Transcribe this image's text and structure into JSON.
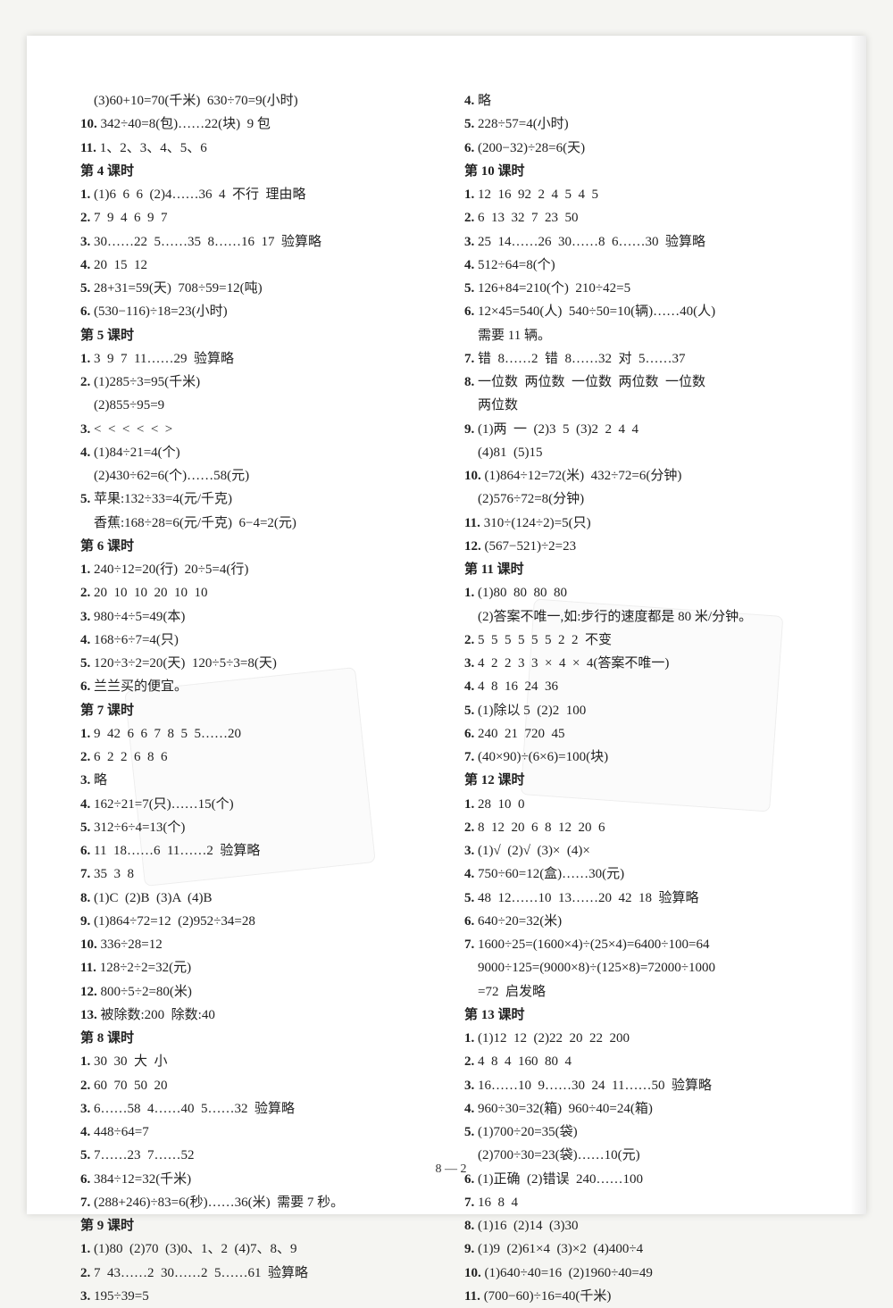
{
  "footer": "8 — 2",
  "left": [
    {
      "t": "    (3)60+10=70(千米)  630÷70=9(小时)"
    },
    {
      "b": true,
      "t": "10. ",
      "r": "342÷40=8(包)……22(块)  9 包"
    },
    {
      "b": true,
      "t": "11. ",
      "r": "1、2、3、4、5、6"
    },
    {
      "h": true,
      "t": "第 4 课时"
    },
    {
      "b": true,
      "t": "1. ",
      "r": "(1)6  6  6  (2)4……36  4  不行  理由略"
    },
    {
      "b": true,
      "t": "2. ",
      "r": "7  9  4  6  9  7"
    },
    {
      "b": true,
      "t": "3. ",
      "r": "30……22  5……35  8……16  17  验算略"
    },
    {
      "b": true,
      "t": "4. ",
      "r": "20  15  12"
    },
    {
      "b": true,
      "t": "5. ",
      "r": "28+31=59(天)  708÷59=12(吨)"
    },
    {
      "b": true,
      "t": "6. ",
      "r": "(530−116)÷18=23(小时)"
    },
    {
      "h": true,
      "t": "第 5 课时"
    },
    {
      "b": true,
      "t": "1. ",
      "r": "3  9  7  11……29  验算略"
    },
    {
      "b": true,
      "t": "2. ",
      "r": "(1)285÷3=95(千米)"
    },
    {
      "t": "    (2)855÷95=9"
    },
    {
      "b": true,
      "t": "3. ",
      "r": "<  <  <  <  <  >"
    },
    {
      "b": true,
      "t": "4. ",
      "r": "(1)84÷21=4(个)"
    },
    {
      "t": "    (2)430÷62=6(个)……58(元)"
    },
    {
      "b": true,
      "t": "5. ",
      "r": "苹果:132÷33=4(元/千克)"
    },
    {
      "t": "    香蕉:168÷28=6(元/千克)  6−4=2(元)"
    },
    {
      "h": true,
      "t": "第 6 课时"
    },
    {
      "b": true,
      "t": "1. ",
      "r": "240÷12=20(行)  20÷5=4(行)"
    },
    {
      "b": true,
      "t": "2. ",
      "r": "20  10  10  20  10  10"
    },
    {
      "b": true,
      "t": "3. ",
      "r": "980÷4÷5=49(本)"
    },
    {
      "b": true,
      "t": "4. ",
      "r": "168÷6÷7=4(只)"
    },
    {
      "b": true,
      "t": "5. ",
      "r": "120÷3÷2=20(天)  120÷5÷3=8(天)"
    },
    {
      "b": true,
      "t": "6. ",
      "r": "兰兰买的便宜。"
    },
    {
      "h": true,
      "t": "第 7 课时"
    },
    {
      "b": true,
      "t": "1. ",
      "r": "9  42  6  6  7  8  5  5……20"
    },
    {
      "b": true,
      "t": "2. ",
      "r": "6  2  2  6  8  6"
    },
    {
      "b": true,
      "t": "3. ",
      "r": "略"
    },
    {
      "b": true,
      "t": "4. ",
      "r": "162÷21=7(只)……15(个)"
    },
    {
      "b": true,
      "t": "5. ",
      "r": "312÷6÷4=13(个)"
    },
    {
      "b": true,
      "t": "6. ",
      "r": "11  18……6  11……2  验算略"
    },
    {
      "b": true,
      "t": "7. ",
      "r": "35  3  8"
    },
    {
      "b": true,
      "t": "8. ",
      "r": "(1)C  (2)B  (3)A  (4)B"
    },
    {
      "b": true,
      "t": "9. ",
      "r": "(1)864÷72=12  (2)952÷34=28"
    },
    {
      "b": true,
      "t": "10. ",
      "r": "336÷28=12"
    },
    {
      "b": true,
      "t": "11. ",
      "r": "128÷2÷2=32(元)"
    },
    {
      "b": true,
      "t": "12. ",
      "r": "800÷5÷2=80(米)"
    },
    {
      "b": true,
      "t": "13. ",
      "r": "被除数:200  除数:40"
    },
    {
      "h": true,
      "t": "第 8 课时"
    },
    {
      "b": true,
      "t": "1. ",
      "r": "30  30  大  小"
    },
    {
      "b": true,
      "t": "2. ",
      "r": "60  70  50  20"
    },
    {
      "b": true,
      "t": "3. ",
      "r": "6……58  4……40  5……32  验算略"
    },
    {
      "b": true,
      "t": "4. ",
      "r": "448÷64=7"
    },
    {
      "b": true,
      "t": "5. ",
      "r": "7……23  7……52"
    },
    {
      "b": true,
      "t": "6. ",
      "r": "384÷12=32(千米)"
    },
    {
      "b": true,
      "t": "7. ",
      "r": "(288+246)÷83=6(秒)……36(米)  需要 7 秒。"
    },
    {
      "h": true,
      "t": "第 9 课时"
    },
    {
      "b": true,
      "t": "1. ",
      "r": "(1)80  (2)70  (3)0、1、2  (4)7、8、9"
    },
    {
      "b": true,
      "t": "2. ",
      "r": "7  43……2  30……2  5……61  验算略"
    },
    {
      "b": true,
      "t": "3. ",
      "r": "195÷39=5"
    }
  ],
  "right": [
    {
      "b": true,
      "t": "4. ",
      "r": "略"
    },
    {
      "b": true,
      "t": "5. ",
      "r": "228÷57=4(小时)"
    },
    {
      "b": true,
      "t": "6. ",
      "r": "(200−32)÷28=6(天)"
    },
    {
      "h": true,
      "t": "第 10 课时"
    },
    {
      "b": true,
      "t": "1. ",
      "r": "12  16  92  2  4  5  4  5"
    },
    {
      "b": true,
      "t": "2. ",
      "r": "6  13  32  7  23  50"
    },
    {
      "b": true,
      "t": "3. ",
      "r": "25  14……26  30……8  6……30  验算略"
    },
    {
      "b": true,
      "t": "4. ",
      "r": "512÷64=8(个)"
    },
    {
      "b": true,
      "t": "5. ",
      "r": "126+84=210(个)  210÷42=5"
    },
    {
      "b": true,
      "t": "6. ",
      "r": "12×45=540(人)  540÷50=10(辆)……40(人)"
    },
    {
      "t": "    需要 11 辆。"
    },
    {
      "b": true,
      "t": "7. ",
      "r": "错  8……2  错  8……32  对  5……37"
    },
    {
      "b": true,
      "t": "8. ",
      "r": "一位数  两位数  一位数  两位数  一位数"
    },
    {
      "t": "    两位数"
    },
    {
      "b": true,
      "t": "9. ",
      "r": "(1)两  一  (2)3  5  (3)2  2  4  4"
    },
    {
      "t": "    (4)81  (5)15"
    },
    {
      "b": true,
      "t": "10. ",
      "r": "(1)864÷12=72(米)  432÷72=6(分钟)"
    },
    {
      "t": "    (2)576÷72=8(分钟)"
    },
    {
      "b": true,
      "t": "11. ",
      "r": "310÷(124÷2)=5(只)"
    },
    {
      "b": true,
      "t": "12. ",
      "r": "(567−521)÷2=23"
    },
    {
      "h": true,
      "t": "第 11 课时"
    },
    {
      "b": true,
      "t": "1. ",
      "r": "(1)80  80  80  80"
    },
    {
      "t": "    (2)答案不唯一,如:步行的速度都是 80 米/分钟。"
    },
    {
      "b": true,
      "t": "2. ",
      "r": "5  5  5  5  5  5  2  2  不变"
    },
    {
      "b": true,
      "t": "3. ",
      "r": "4  2  2  3  3  ×  4  ×  4(答案不唯一)"
    },
    {
      "b": true,
      "t": "4. ",
      "r": "4  8  16  24  36"
    },
    {
      "b": true,
      "t": "5. ",
      "r": "(1)除以 5  (2)2  100"
    },
    {
      "b": true,
      "t": "6. ",
      "r": "240  21  720  45"
    },
    {
      "b": true,
      "t": "7. ",
      "r": "(40×90)÷(6×6)=100(块)"
    },
    {
      "h": true,
      "t": "第 12 课时"
    },
    {
      "b": true,
      "t": "1. ",
      "r": "28  10  0"
    },
    {
      "b": true,
      "t": "2. ",
      "r": "8  12  20  6  8  12  20  6"
    },
    {
      "b": true,
      "t": "3. ",
      "r": "(1)√  (2)√  (3)×  (4)×"
    },
    {
      "b": true,
      "t": "4. ",
      "r": "750÷60=12(盒)……30(元)"
    },
    {
      "b": true,
      "t": "5. ",
      "r": "48  12……10  13……20  42  18  验算略"
    },
    {
      "b": true,
      "t": "6. ",
      "r": "640÷20=32(米)"
    },
    {
      "b": true,
      "t": "7. ",
      "r": "1600÷25=(1600×4)÷(25×4)=6400÷100=64"
    },
    {
      "t": "    9000÷125=(9000×8)÷(125×8)=72000÷1000"
    },
    {
      "t": "    =72  启发略"
    },
    {
      "h": true,
      "t": "第 13 课时"
    },
    {
      "b": true,
      "t": "1. ",
      "r": "(1)12  12  (2)22  20  22  200"
    },
    {
      "b": true,
      "t": "2. ",
      "r": "4  8  4  160  80  4"
    },
    {
      "b": true,
      "t": "3. ",
      "r": "16……10  9……30  24  11……50  验算略"
    },
    {
      "b": true,
      "t": "4. ",
      "r": "960÷30=32(箱)  960÷40=24(箱)"
    },
    {
      "b": true,
      "t": "5. ",
      "r": "(1)700÷20=35(袋)"
    },
    {
      "t": "    (2)700÷30=23(袋)……10(元)"
    },
    {
      "b": true,
      "t": "6. ",
      "r": "(1)正确  (2)错误  240……100"
    },
    {
      "b": true,
      "t": "7. ",
      "r": "16  8  4"
    },
    {
      "b": true,
      "t": "8. ",
      "r": "(1)16  (2)14  (3)30"
    },
    {
      "b": true,
      "t": "9. ",
      "r": "(1)9  (2)61×4  (3)×2  (4)400÷4"
    },
    {
      "b": true,
      "t": "10. ",
      "r": "(1)640÷40=16  (2)1960÷40=49"
    },
    {
      "b": true,
      "t": "11. ",
      "r": "(700−60)÷16=40(千米)"
    }
  ]
}
